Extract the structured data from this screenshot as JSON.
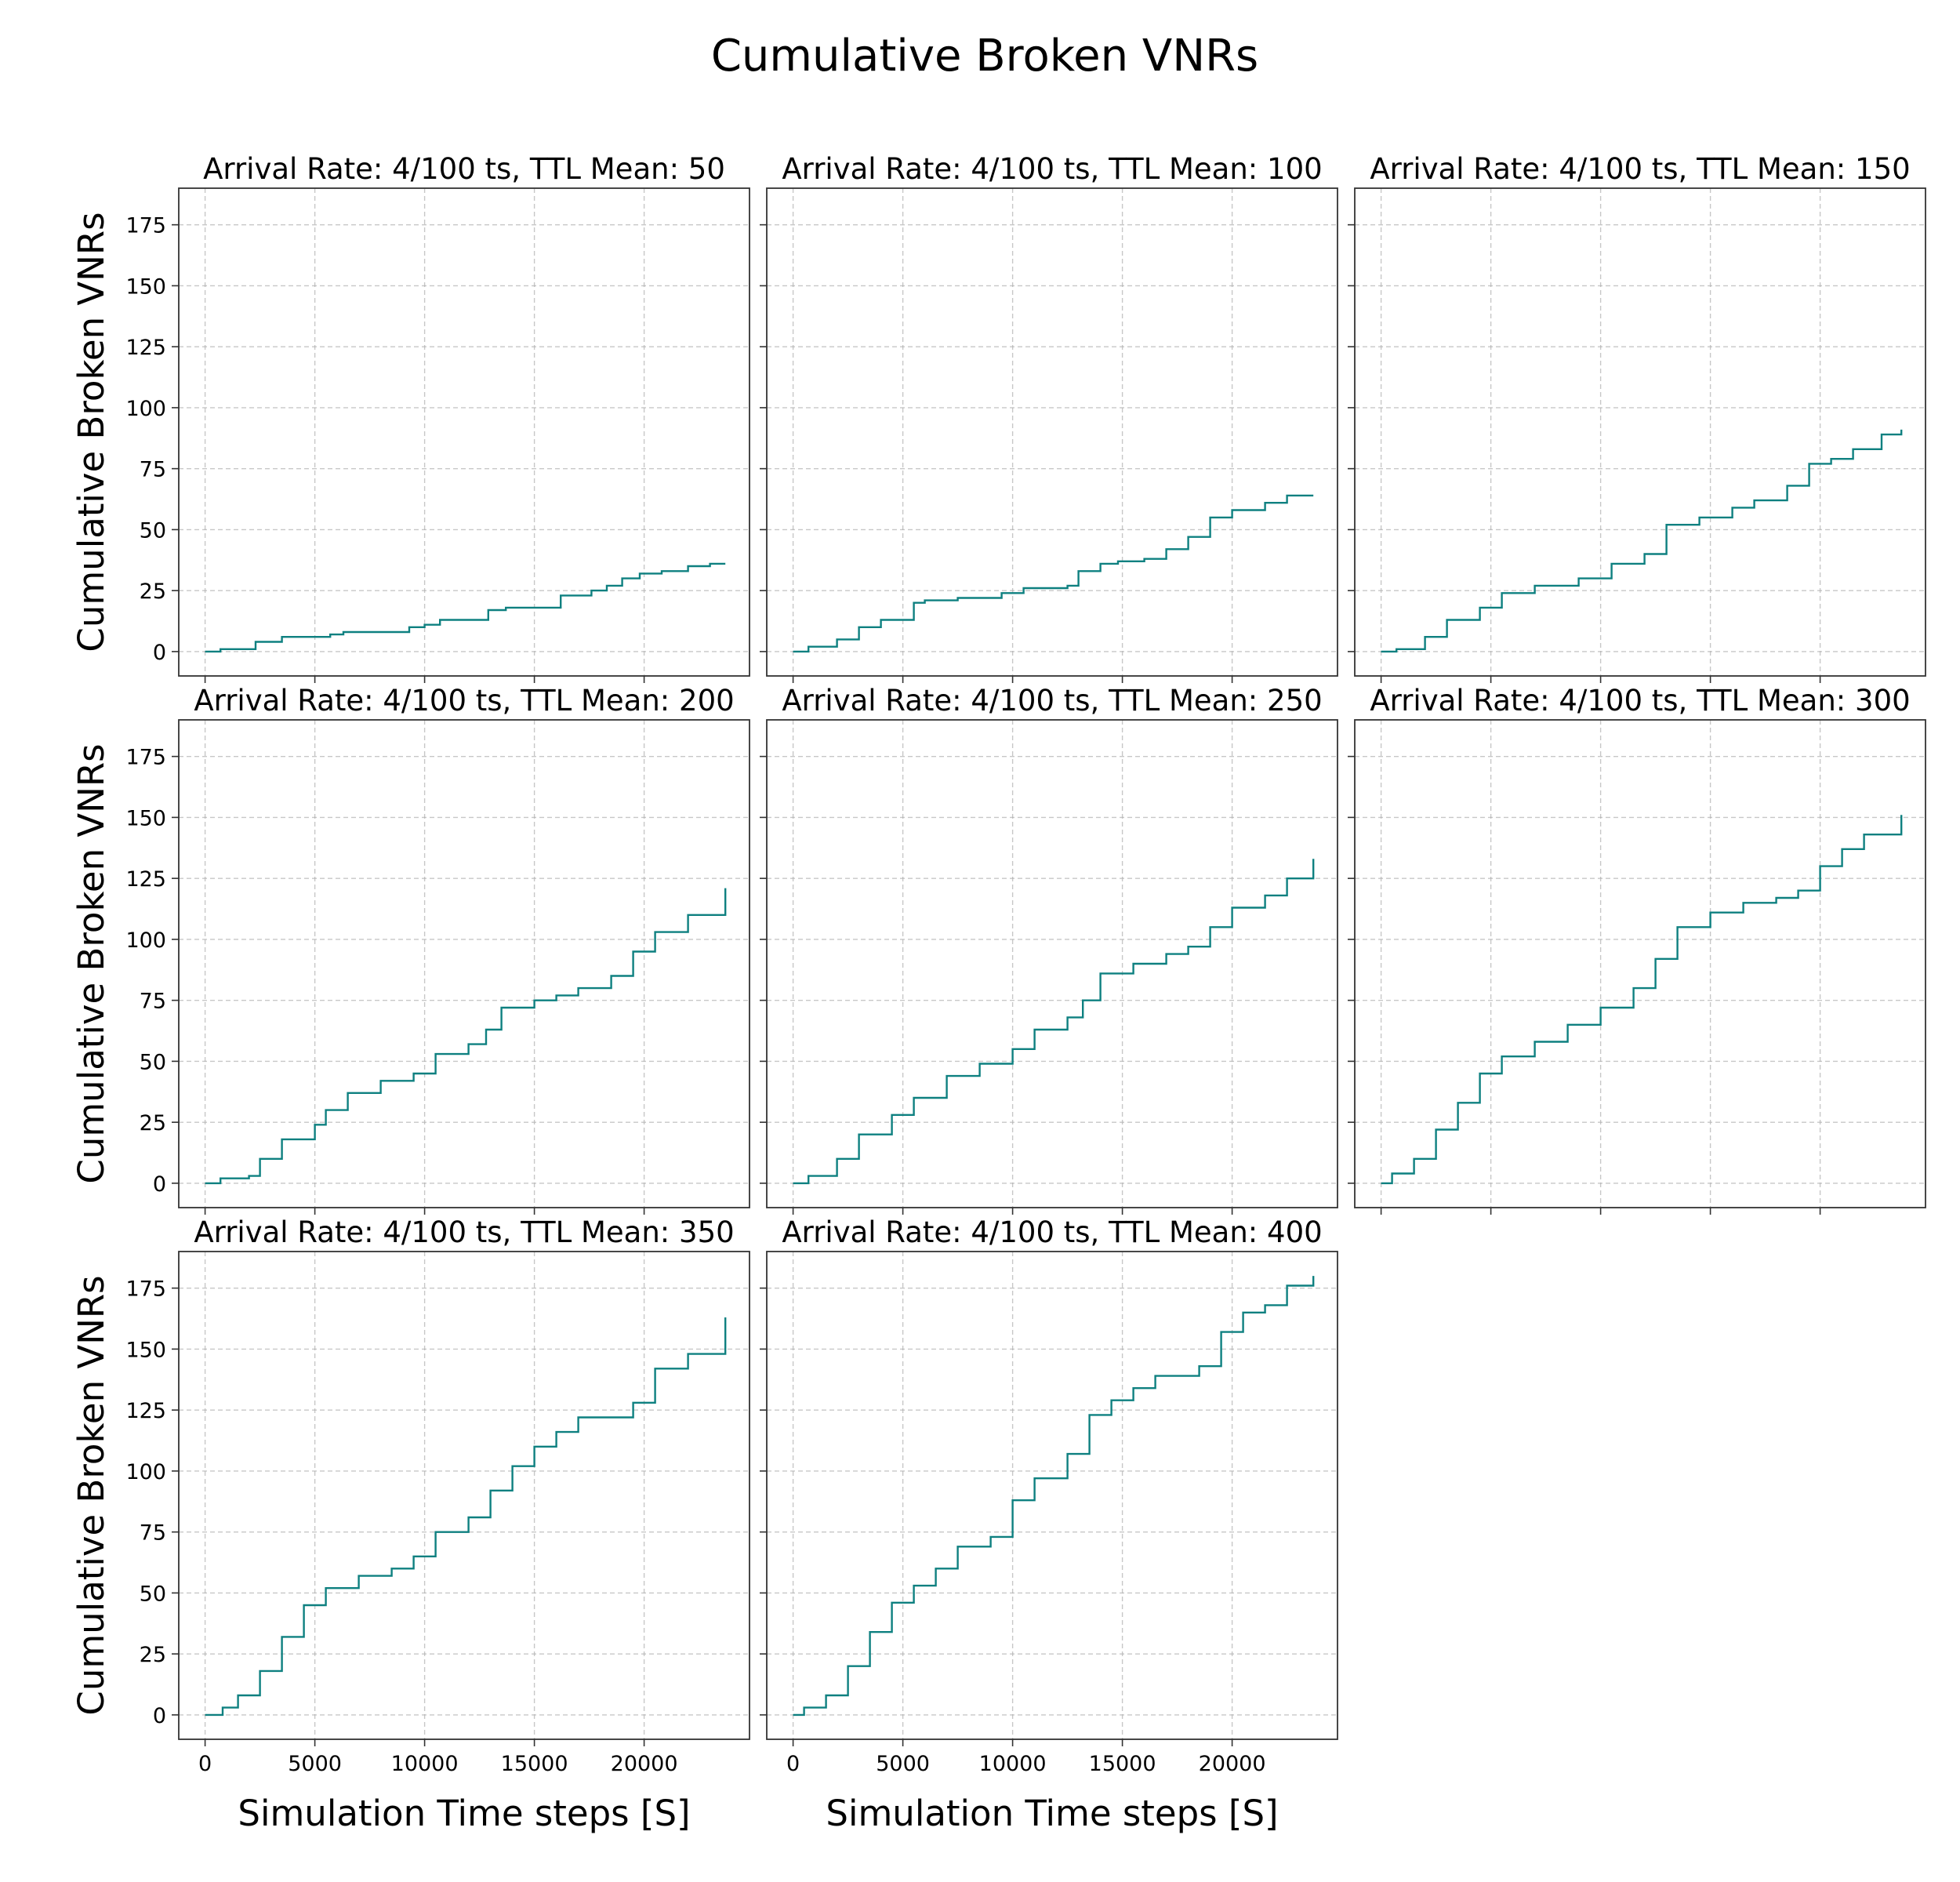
{
  "figure": {
    "suptitle": "Cumulative Broken VNRs"
  },
  "chart_data": [
    {
      "type": "line",
      "step": true,
      "title": "Arrival Rate: 4/100 ts, TTL Mean: 50",
      "xlabel": "",
      "ylabel": "Cumulative Broken VNRs",
      "xlim": [
        -1200,
        24800
      ],
      "ylim": [
        -10,
        190
      ],
      "xticks": [
        0,
        5000,
        10000,
        15000,
        20000
      ],
      "yticks": [
        0,
        25,
        50,
        75,
        100,
        125,
        150,
        175
      ],
      "show_xticklabels": false,
      "show_yticklabels": true,
      "grid": true,
      "color": "#0e8080",
      "series": [
        {
          "name": "",
          "x": [
            0,
            700,
            2300,
            3500,
            5700,
            6300,
            9300,
            10000,
            10700,
            12900,
            13700,
            15600,
            16200,
            17600,
            18300,
            19000,
            19800,
            20800,
            22000,
            23000,
            23700
          ],
          "y": [
            0,
            1,
            4,
            6,
            7,
            8,
            10,
            11,
            13,
            17,
            18,
            18,
            23,
            25,
            27,
            30,
            32,
            33,
            35,
            36,
            36
          ]
        }
      ]
    },
    {
      "type": "line",
      "step": true,
      "title": "Arrival Rate: 4/100 ts, TTL Mean: 100",
      "xlabel": "",
      "ylabel": "",
      "xlim": [
        -1200,
        24800
      ],
      "ylim": [
        -10,
        190
      ],
      "xticks": [
        0,
        5000,
        10000,
        15000,
        20000
      ],
      "yticks": [
        0,
        25,
        50,
        75,
        100,
        125,
        150,
        175
      ],
      "show_xticklabels": false,
      "show_yticklabels": false,
      "grid": true,
      "color": "#0e8080",
      "series": [
        {
          "name": "",
          "x": [
            0,
            700,
            2000,
            3000,
            4000,
            5500,
            6000,
            7500,
            9500,
            10500,
            12500,
            13000,
            14000,
            14800,
            16000,
            17000,
            18000,
            19000,
            20000,
            21500,
            22500,
            23700
          ],
          "y": [
            0,
            2,
            5,
            10,
            13,
            20,
            21,
            22,
            24,
            26,
            27,
            33,
            36,
            37,
            38,
            42,
            47,
            55,
            58,
            61,
            64,
            64
          ]
        }
      ]
    },
    {
      "type": "line",
      "step": true,
      "title": "Arrival Rate: 4/100 ts, TTL Mean: 150",
      "xlabel": "",
      "ylabel": "",
      "xlim": [
        -1200,
        24800
      ],
      "ylim": [
        -10,
        190
      ],
      "xticks": [
        0,
        5000,
        10000,
        15000,
        20000
      ],
      "yticks": [
        0,
        25,
        50,
        75,
        100,
        125,
        150,
        175
      ],
      "show_xticklabels": false,
      "show_yticklabels": false,
      "grid": true,
      "color": "#0e8080",
      "series": [
        {
          "name": "",
          "x": [
            0,
            700,
            2000,
            3000,
            4500,
            5500,
            7000,
            9000,
            10500,
            12000,
            13000,
            14500,
            16000,
            17000,
            18500,
            19500,
            20500,
            21500,
            22800,
            23700
          ],
          "y": [
            0,
            1,
            6,
            13,
            18,
            24,
            27,
            30,
            36,
            40,
            52,
            55,
            59,
            62,
            68,
            77,
            79,
            83,
            89,
            91
          ]
        }
      ]
    },
    {
      "type": "line",
      "step": true,
      "title": "Arrival Rate: 4/100 ts, TTL Mean: 200",
      "xlabel": "",
      "ylabel": "Cumulative Broken VNRs",
      "xlim": [
        -1200,
        24800
      ],
      "ylim": [
        -10,
        190
      ],
      "xticks": [
        0,
        5000,
        10000,
        15000,
        20000
      ],
      "yticks": [
        0,
        25,
        50,
        75,
        100,
        125,
        150,
        175
      ],
      "show_xticklabels": false,
      "show_yticklabels": true,
      "grid": true,
      "color": "#0e8080",
      "series": [
        {
          "name": "",
          "x": [
            0,
            700,
            2000,
            2500,
            3500,
            5000,
            5500,
            6500,
            8000,
            9500,
            10500,
            12000,
            12800,
            13500,
            15000,
            16000,
            17000,
            18500,
            19500,
            20500,
            22000,
            23700
          ],
          "y": [
            0,
            2,
            3,
            10,
            18,
            24,
            30,
            37,
            42,
            45,
            53,
            57,
            63,
            72,
            75,
            77,
            80,
            85,
            95,
            103,
            110,
            121
          ]
        }
      ]
    },
    {
      "type": "line",
      "step": true,
      "title": "Arrival Rate: 4/100 ts, TTL Mean: 250",
      "xlabel": "",
      "ylabel": "",
      "xlim": [
        -1200,
        24800
      ],
      "ylim": [
        -10,
        190
      ],
      "xticks": [
        0,
        5000,
        10000,
        15000,
        20000
      ],
      "yticks": [
        0,
        25,
        50,
        75,
        100,
        125,
        150,
        175
      ],
      "show_xticklabels": false,
      "show_yticklabels": false,
      "grid": true,
      "color": "#0e8080",
      "series": [
        {
          "name": "",
          "x": [
            0,
            700,
            2000,
            3000,
            4500,
            5500,
            7000,
            8500,
            10000,
            11000,
            12500,
            13200,
            14000,
            15500,
            17000,
            18000,
            19000,
            20000,
            21500,
            22500,
            23700
          ],
          "y": [
            0,
            3,
            10,
            20,
            28,
            35,
            44,
            49,
            55,
            63,
            68,
            75,
            86,
            90,
            94,
            97,
            105,
            113,
            118,
            125,
            133
          ]
        }
      ]
    },
    {
      "type": "line",
      "step": true,
      "title": "Arrival Rate: 4/100 ts, TTL Mean: 300",
      "xlabel": "",
      "ylabel": "",
      "xlim": [
        -1200,
        24800
      ],
      "ylim": [
        -10,
        190
      ],
      "xticks": [
        0,
        5000,
        10000,
        15000,
        20000
      ],
      "yticks": [
        0,
        25,
        50,
        75,
        100,
        125,
        150,
        175
      ],
      "show_xticklabels": false,
      "show_yticklabels": false,
      "grid": true,
      "color": "#0e8080",
      "series": [
        {
          "name": "",
          "x": [
            0,
            500,
            1500,
            2500,
            3500,
            4500,
            5500,
            7000,
            8500,
            10000,
            11500,
            12500,
            13500,
            15000,
            16500,
            18000,
            19000,
            20000,
            21000,
            22000,
            23700
          ],
          "y": [
            0,
            4,
            10,
            22,
            33,
            45,
            52,
            58,
            65,
            72,
            80,
            92,
            105,
            111,
            115,
            117,
            120,
            130,
            137,
            143,
            151
          ]
        }
      ]
    },
    {
      "type": "line",
      "step": true,
      "title": "Arrival Rate: 4/100 ts, TTL Mean: 350",
      "xlabel": "Simulation Time steps [S]",
      "ylabel": "Cumulative Broken VNRs",
      "xlim": [
        -1200,
        24800
      ],
      "ylim": [
        -10,
        190
      ],
      "xticks": [
        0,
        5000,
        10000,
        15000,
        20000
      ],
      "yticks": [
        0,
        25,
        50,
        75,
        100,
        125,
        150,
        175
      ],
      "show_xticklabels": true,
      "show_yticklabels": true,
      "grid": true,
      "color": "#0e8080",
      "series": [
        {
          "name": "",
          "x": [
            0,
            800,
            1500,
            2500,
            3500,
            4500,
            5500,
            7000,
            8500,
            9500,
            10500,
            12000,
            13000,
            14000,
            15000,
            16000,
            17000,
            18500,
            19500,
            20500,
            22000,
            23700
          ],
          "y": [
            0,
            3,
            8,
            18,
            32,
            45,
            52,
            57,
            60,
            65,
            75,
            81,
            92,
            102,
            110,
            116,
            122,
            122,
            128,
            142,
            148,
            163
          ]
        }
      ]
    },
    {
      "type": "line",
      "step": true,
      "title": "Arrival Rate: 4/100 ts, TTL Mean: 400",
      "xlabel": "Simulation Time steps [S]",
      "ylabel": "",
      "xlim": [
        -1200,
        24800
      ],
      "ylim": [
        -10,
        190
      ],
      "xticks": [
        0,
        5000,
        10000,
        15000,
        20000
      ],
      "yticks": [
        0,
        25,
        50,
        75,
        100,
        125,
        150,
        175
      ],
      "show_xticklabels": true,
      "show_yticklabels": false,
      "grid": true,
      "color": "#0e8080",
      "series": [
        {
          "name": "",
          "x": [
            0,
            500,
            1500,
            2500,
            3500,
            4500,
            5500,
            6500,
            7500,
            9000,
            10000,
            11000,
            12500,
            13500,
            14500,
            15500,
            16500,
            17500,
            18500,
            19500,
            20500,
            21500,
            22500,
            23700
          ],
          "y": [
            0,
            3,
            8,
            20,
            34,
            46,
            53,
            60,
            69,
            73,
            88,
            97,
            107,
            123,
            129,
            134,
            139,
            139,
            143,
            157,
            165,
            168,
            176,
            180
          ]
        }
      ]
    }
  ]
}
